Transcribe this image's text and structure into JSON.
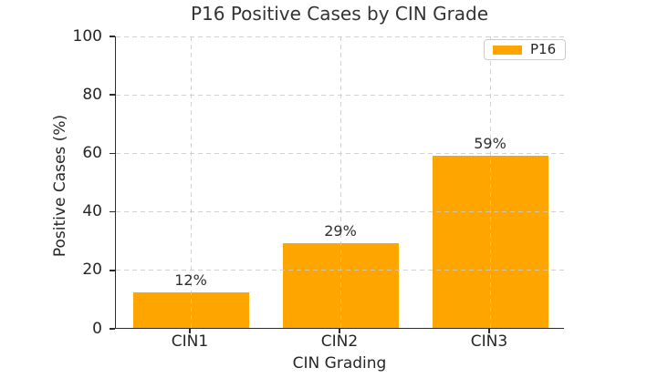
{
  "chart_data": {
    "type": "bar",
    "title": "P16 Positive Cases by CIN Grade",
    "xlabel": "CIN Grading",
    "ylabel": "Positive Cases (%)",
    "categories": [
      "CIN1",
      "CIN2",
      "CIN3"
    ],
    "series": [
      {
        "name": "P16",
        "values": [
          12,
          29,
          59
        ]
      }
    ],
    "bar_labels": [
      "12%",
      "29%",
      "59%"
    ],
    "ylim": [
      0,
      100
    ],
    "yticks": [
      0,
      20,
      40,
      60,
      80,
      100
    ],
    "grid": "dashed, horizontal and vertical, drawn over bars",
    "legend_position": "upper right",
    "colors": {
      "bar": "#FFA500",
      "text": "#262626",
      "title": "#333333",
      "grid": "#c9c9c9",
      "spine": "#2c2c2c",
      "legend_border": "#cccccc"
    }
  }
}
